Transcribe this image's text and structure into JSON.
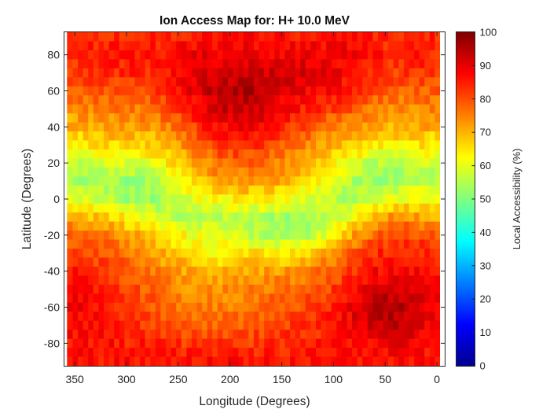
{
  "chart_data": {
    "type": "heatmap",
    "title": "Ion Access Map for: H+ 10.0 MeV",
    "xlabel": "Longitude (Degrees)",
    "ylabel": "Latitude (Degrees)",
    "colorbar_label": "Local Accessibility (%)",
    "colormap": "jet",
    "xlim": [
      360,
      -7.5
    ],
    "ylim": [
      -92.5,
      92.5
    ],
    "clim": [
      0,
      100
    ],
    "x_reversed": true,
    "xticks": [
      350,
      300,
      250,
      200,
      150,
      100,
      50,
      0
    ],
    "xtick_labels": [
      "350",
      "300",
      "250",
      "200",
      "150",
      "100",
      "50",
      "0"
    ],
    "yticks": [
      80,
      60,
      40,
      20,
      0,
      -20,
      -40,
      -60,
      -80
    ],
    "ytick_labels": [
      "80",
      "60",
      "40",
      "20",
      "0",
      "-20",
      "-40",
      "-60",
      "-80"
    ],
    "colorbar_ticks": [
      0,
      10,
      20,
      30,
      40,
      50,
      60,
      70,
      80,
      90,
      100
    ],
    "colorbar_tick_labels": [
      "0",
      "10",
      "20",
      "30",
      "40",
      "50",
      "60",
      "70",
      "80",
      "90",
      "100"
    ],
    "grid": false,
    "longitudes": [
      0,
      15,
      30,
      45,
      60,
      75,
      90,
      105,
      120,
      135,
      150,
      165,
      180,
      195,
      210,
      225,
      240,
      255,
      270,
      285,
      300,
      315,
      330,
      345,
      360
    ],
    "latitudes": [
      90,
      80,
      70,
      60,
      50,
      40,
      30,
      20,
      10,
      0,
      -10,
      -20,
      -30,
      -40,
      -50,
      -60,
      -70,
      -80,
      -90
    ],
    "values": [
      [
        84,
        85,
        84,
        83,
        84,
        85,
        86,
        86,
        86,
        86,
        86,
        86,
        86,
        86,
        86,
        86,
        85,
        84,
        84,
        84,
        84,
        84,
        84,
        84,
        84
      ],
      [
        84,
        85,
        84,
        84,
        86,
        87,
        88,
        89,
        89,
        89,
        89,
        89,
        89,
        89,
        89,
        89,
        88,
        87,
        85,
        85,
        85,
        85,
        84,
        84,
        84
      ],
      [
        82,
        83,
        82,
        82,
        84,
        86,
        88,
        89,
        90,
        91,
        91,
        92,
        92,
        92,
        92,
        91,
        89,
        87,
        85,
        84,
        84,
        84,
        83,
        82,
        82
      ],
      [
        78,
        79,
        78,
        78,
        80,
        83,
        85,
        87,
        88,
        89,
        91,
        93,
        95,
        95,
        94,
        92,
        89,
        85,
        82,
        80,
        80,
        80,
        79,
        78,
        78
      ],
      [
        74,
        75,
        74,
        74,
        75,
        77,
        80,
        82,
        84,
        86,
        88,
        91,
        93,
        93,
        92,
        89,
        85,
        81,
        78,
        76,
        76,
        76,
        75,
        74,
        74
      ],
      [
        70,
        71,
        70,
        70,
        71,
        72,
        74,
        76,
        79,
        81,
        84,
        86,
        88,
        88,
        87,
        84,
        80,
        76,
        73,
        72,
        72,
        72,
        71,
        70,
        70
      ],
      [
        64,
        65,
        64,
        64,
        65,
        67,
        69,
        71,
        74,
        76,
        79,
        81,
        83,
        83,
        82,
        79,
        75,
        71,
        68,
        66,
        66,
        66,
        65,
        64,
        64
      ],
      [
        57,
        58,
        57,
        56,
        56,
        58,
        62,
        66,
        69,
        72,
        75,
        77,
        78,
        78,
        77,
        74,
        70,
        66,
        62,
        60,
        59,
        59,
        58,
        57,
        57
      ],
      [
        54,
        55,
        54,
        52,
        52,
        53,
        57,
        61,
        65,
        68,
        71,
        72,
        73,
        73,
        72,
        69,
        65,
        60,
        56,
        53,
        52,
        53,
        54,
        54,
        54
      ],
      [
        60,
        62,
        62,
        60,
        57,
        55,
        55,
        56,
        58,
        60,
        62,
        63,
        64,
        64,
        63,
        62,
        59,
        56,
        53,
        52,
        53,
        56,
        58,
        60,
        60
      ],
      [
        70,
        72,
        74,
        73,
        70,
        65,
        60,
        56,
        53,
        52,
        53,
        55,
        56,
        57,
        56,
        55,
        55,
        56,
        58,
        60,
        63,
        66,
        68,
        70,
        70
      ],
      [
        78,
        80,
        81,
        81,
        78,
        74,
        68,
        62,
        56,
        53,
        53,
        54,
        56,
        58,
        59,
        60,
        62,
        64,
        67,
        70,
        72,
        75,
        77,
        78,
        78
      ],
      [
        82,
        84,
        85,
        85,
        83,
        80,
        76,
        72,
        68,
        66,
        65,
        65,
        65,
        64,
        64,
        64,
        66,
        68,
        71,
        74,
        76,
        78,
        80,
        82,
        82
      ],
      [
        85,
        87,
        88,
        88,
        87,
        84,
        80,
        77,
        75,
        73,
        72,
        72,
        71,
        70,
        69,
        69,
        71,
        73,
        75,
        77,
        79,
        81,
        83,
        85,
        85
      ],
      [
        87,
        89,
        91,
        92,
        91,
        88,
        84,
        81,
        79,
        77,
        76,
        76,
        75,
        74,
        73,
        73,
        74,
        75,
        77,
        79,
        81,
        83,
        85,
        87,
        87
      ],
      [
        88,
        91,
        94,
        95,
        94,
        91,
        87,
        84,
        82,
        80,
        79,
        78,
        77,
        76,
        75,
        75,
        76,
        77,
        79,
        81,
        83,
        85,
        87,
        88,
        88
      ],
      [
        87,
        89,
        93,
        94,
        93,
        90,
        88,
        85,
        83,
        82,
        81,
        80,
        79,
        79,
        78,
        78,
        79,
        80,
        81,
        82,
        84,
        85,
        86,
        87,
        87
      ],
      [
        86,
        87,
        89,
        89,
        88,
        87,
        86,
        85,
        84,
        84,
        83,
        83,
        82,
        82,
        82,
        82,
        82,
        83,
        84,
        85,
        85,
        86,
        86,
        86,
        86
      ],
      [
        86,
        86,
        86,
        86,
        86,
        86,
        86,
        86,
        86,
        86,
        86,
        86,
        86,
        86,
        86,
        86,
        86,
        86,
        86,
        86,
        86,
        86,
        86,
        86,
        86
      ]
    ]
  }
}
